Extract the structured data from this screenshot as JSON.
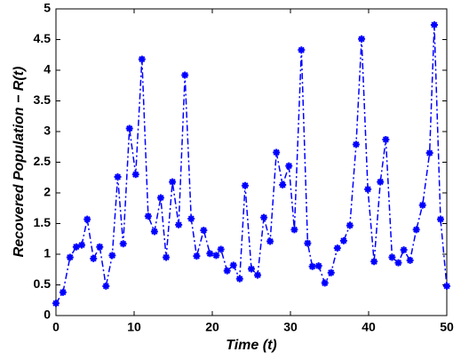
{
  "chart_data": {
    "type": "line",
    "xlabel": "Time (t)",
    "ylabel": "Recovered Population − R(t)",
    "x": [
      0,
      0.9,
      1.8,
      2.6,
      3.3,
      4.0,
      4.8,
      5.6,
      6.4,
      7.2,
      7.9,
      8.6,
      9.4,
      10.2,
      11.0,
      11.8,
      12.6,
      13.4,
      14.1,
      14.9,
      15.7,
      16.5,
      17.3,
      18.0,
      18.9,
      19.7,
      20.5,
      21.1,
      21.9,
      22.7,
      23.5,
      24.2,
      25.0,
      25.8,
      26.6,
      27.4,
      28.2,
      29.0,
      29.8,
      30.5,
      31.4,
      32.2,
      32.8,
      33.6,
      34.4,
      35.2,
      36.0,
      36.8,
      37.6,
      38.4,
      39.1,
      39.9,
      40.7,
      41.5,
      42.2,
      43.0,
      43.8,
      44.5,
      45.3,
      46.1,
      46.9,
      47.8,
      48.4,
      49.2,
      50.0
    ],
    "series": [
      {
        "color": "#0000ff",
        "values": [
          0.2,
          0.38,
          0.95,
          1.12,
          1.15,
          1.57,
          0.93,
          1.12,
          0.48,
          0.98,
          2.26,
          1.17,
          3.05,
          2.3,
          4.18,
          1.62,
          1.37,
          1.92,
          0.95,
          2.18,
          1.48,
          3.92,
          1.58,
          0.97,
          1.39,
          1.01,
          0.98,
          1.08,
          0.73,
          0.82,
          0.6,
          2.12,
          0.76,
          0.66,
          1.6,
          1.21,
          2.66,
          2.13,
          2.44,
          1.4,
          4.33,
          1.18,
          0.8,
          0.81,
          0.53,
          0.7,
          1.1,
          1.22,
          1.47,
          2.79,
          4.51,
          2.06,
          0.88,
          2.18,
          2.87,
          0.95,
          0.86,
          1.07,
          0.9,
          1.4,
          1.8,
          2.65,
          4.74,
          1.57,
          0.48
        ]
      }
    ],
    "xlim": [
      0,
      50
    ],
    "xticks": [
      0,
      10,
      20,
      30,
      40,
      50
    ],
    "ylim": [
      0,
      5
    ],
    "yticks": [
      0,
      0.5,
      1,
      1.5,
      2,
      2.5,
      3,
      3.5,
      4,
      4.5,
      5
    ],
    "grid": false
  }
}
